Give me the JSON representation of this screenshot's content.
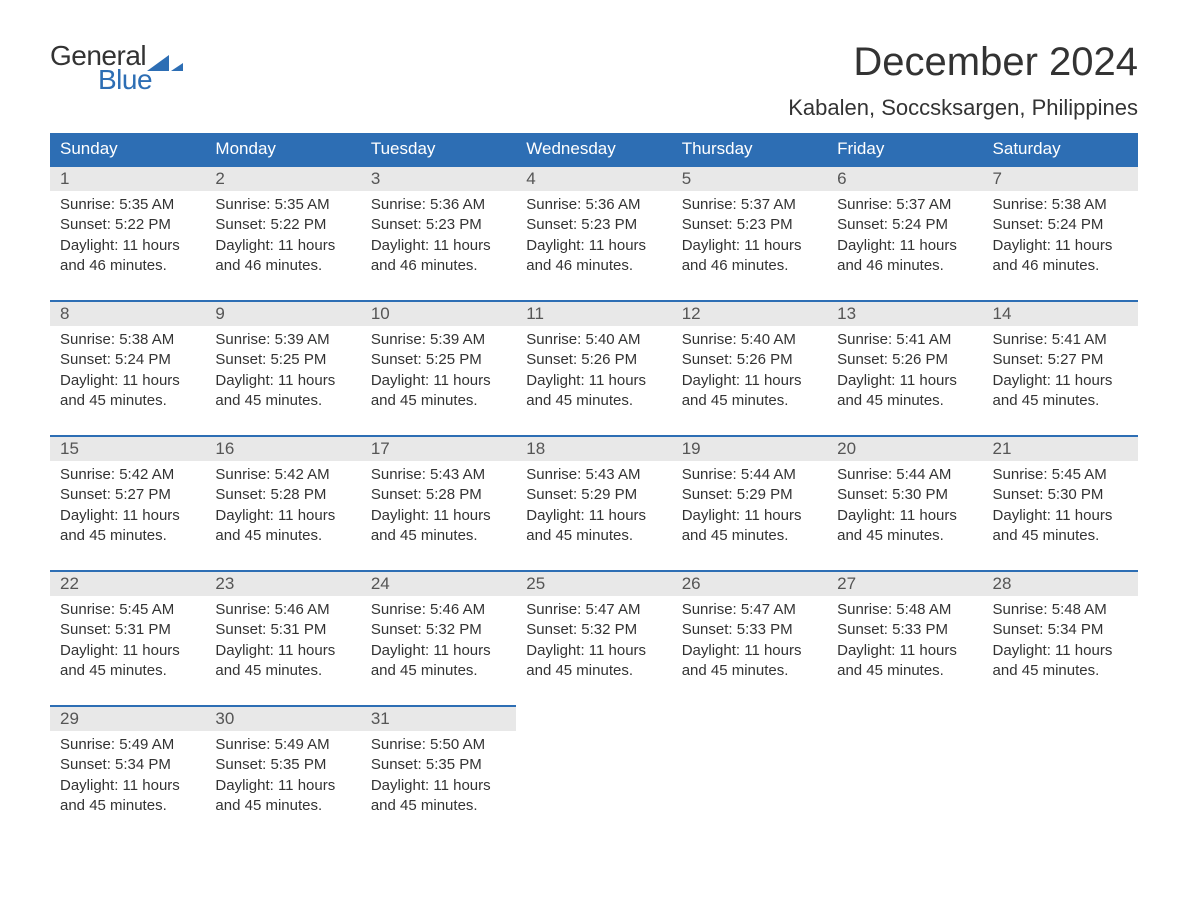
{
  "logo": {
    "text_general": "General",
    "text_blue": "Blue",
    "triangle_color": "#2d6eb4"
  },
  "title": "December 2024",
  "location": "Kabalen, Soccsksargen, Philippines",
  "colors": {
    "header_bg": "#2d6eb4",
    "header_text": "#ffffff",
    "day_number_bg": "#e8e8e8",
    "border_top": "#2d6eb4",
    "body_text": "#333333"
  },
  "weekdays": [
    "Sunday",
    "Monday",
    "Tuesday",
    "Wednesday",
    "Thursday",
    "Friday",
    "Saturday"
  ],
  "weeks": [
    [
      {
        "day": "1",
        "sunrise": "5:35 AM",
        "sunset": "5:22 PM",
        "daylight_line1": "Daylight: 11 hours",
        "daylight_line2": "and 46 minutes."
      },
      {
        "day": "2",
        "sunrise": "5:35 AM",
        "sunset": "5:22 PM",
        "daylight_line1": "Daylight: 11 hours",
        "daylight_line2": "and 46 minutes."
      },
      {
        "day": "3",
        "sunrise": "5:36 AM",
        "sunset": "5:23 PM",
        "daylight_line1": "Daylight: 11 hours",
        "daylight_line2": "and 46 minutes."
      },
      {
        "day": "4",
        "sunrise": "5:36 AM",
        "sunset": "5:23 PM",
        "daylight_line1": "Daylight: 11 hours",
        "daylight_line2": "and 46 minutes."
      },
      {
        "day": "5",
        "sunrise": "5:37 AM",
        "sunset": "5:23 PM",
        "daylight_line1": "Daylight: 11 hours",
        "daylight_line2": "and 46 minutes."
      },
      {
        "day": "6",
        "sunrise": "5:37 AM",
        "sunset": "5:24 PM",
        "daylight_line1": "Daylight: 11 hours",
        "daylight_line2": "and 46 minutes."
      },
      {
        "day": "7",
        "sunrise": "5:38 AM",
        "sunset": "5:24 PM",
        "daylight_line1": "Daylight: 11 hours",
        "daylight_line2": "and 46 minutes."
      }
    ],
    [
      {
        "day": "8",
        "sunrise": "5:38 AM",
        "sunset": "5:24 PM",
        "daylight_line1": "Daylight: 11 hours",
        "daylight_line2": "and 45 minutes."
      },
      {
        "day": "9",
        "sunrise": "5:39 AM",
        "sunset": "5:25 PM",
        "daylight_line1": "Daylight: 11 hours",
        "daylight_line2": "and 45 minutes."
      },
      {
        "day": "10",
        "sunrise": "5:39 AM",
        "sunset": "5:25 PM",
        "daylight_line1": "Daylight: 11 hours",
        "daylight_line2": "and 45 minutes."
      },
      {
        "day": "11",
        "sunrise": "5:40 AM",
        "sunset": "5:26 PM",
        "daylight_line1": "Daylight: 11 hours",
        "daylight_line2": "and 45 minutes."
      },
      {
        "day": "12",
        "sunrise": "5:40 AM",
        "sunset": "5:26 PM",
        "daylight_line1": "Daylight: 11 hours",
        "daylight_line2": "and 45 minutes."
      },
      {
        "day": "13",
        "sunrise": "5:41 AM",
        "sunset": "5:26 PM",
        "daylight_line1": "Daylight: 11 hours",
        "daylight_line2": "and 45 minutes."
      },
      {
        "day": "14",
        "sunrise": "5:41 AM",
        "sunset": "5:27 PM",
        "daylight_line1": "Daylight: 11 hours",
        "daylight_line2": "and 45 minutes."
      }
    ],
    [
      {
        "day": "15",
        "sunrise": "5:42 AM",
        "sunset": "5:27 PM",
        "daylight_line1": "Daylight: 11 hours",
        "daylight_line2": "and 45 minutes."
      },
      {
        "day": "16",
        "sunrise": "5:42 AM",
        "sunset": "5:28 PM",
        "daylight_line1": "Daylight: 11 hours",
        "daylight_line2": "and 45 minutes."
      },
      {
        "day": "17",
        "sunrise": "5:43 AM",
        "sunset": "5:28 PM",
        "daylight_line1": "Daylight: 11 hours",
        "daylight_line2": "and 45 minutes."
      },
      {
        "day": "18",
        "sunrise": "5:43 AM",
        "sunset": "5:29 PM",
        "daylight_line1": "Daylight: 11 hours",
        "daylight_line2": "and 45 minutes."
      },
      {
        "day": "19",
        "sunrise": "5:44 AM",
        "sunset": "5:29 PM",
        "daylight_line1": "Daylight: 11 hours",
        "daylight_line2": "and 45 minutes."
      },
      {
        "day": "20",
        "sunrise": "5:44 AM",
        "sunset": "5:30 PM",
        "daylight_line1": "Daylight: 11 hours",
        "daylight_line2": "and 45 minutes."
      },
      {
        "day": "21",
        "sunrise": "5:45 AM",
        "sunset": "5:30 PM",
        "daylight_line1": "Daylight: 11 hours",
        "daylight_line2": "and 45 minutes."
      }
    ],
    [
      {
        "day": "22",
        "sunrise": "5:45 AM",
        "sunset": "5:31 PM",
        "daylight_line1": "Daylight: 11 hours",
        "daylight_line2": "and 45 minutes."
      },
      {
        "day": "23",
        "sunrise": "5:46 AM",
        "sunset": "5:31 PM",
        "daylight_line1": "Daylight: 11 hours",
        "daylight_line2": "and 45 minutes."
      },
      {
        "day": "24",
        "sunrise": "5:46 AM",
        "sunset": "5:32 PM",
        "daylight_line1": "Daylight: 11 hours",
        "daylight_line2": "and 45 minutes."
      },
      {
        "day": "25",
        "sunrise": "5:47 AM",
        "sunset": "5:32 PM",
        "daylight_line1": "Daylight: 11 hours",
        "daylight_line2": "and 45 minutes."
      },
      {
        "day": "26",
        "sunrise": "5:47 AM",
        "sunset": "5:33 PM",
        "daylight_line1": "Daylight: 11 hours",
        "daylight_line2": "and 45 minutes."
      },
      {
        "day": "27",
        "sunrise": "5:48 AM",
        "sunset": "5:33 PM",
        "daylight_line1": "Daylight: 11 hours",
        "daylight_line2": "and 45 minutes."
      },
      {
        "day": "28",
        "sunrise": "5:48 AM",
        "sunset": "5:34 PM",
        "daylight_line1": "Daylight: 11 hours",
        "daylight_line2": "and 45 minutes."
      }
    ],
    [
      {
        "day": "29",
        "sunrise": "5:49 AM",
        "sunset": "5:34 PM",
        "daylight_line1": "Daylight: 11 hours",
        "daylight_line2": "and 45 minutes."
      },
      {
        "day": "30",
        "sunrise": "5:49 AM",
        "sunset": "5:35 PM",
        "daylight_line1": "Daylight: 11 hours",
        "daylight_line2": "and 45 minutes."
      },
      {
        "day": "31",
        "sunrise": "5:50 AM",
        "sunset": "5:35 PM",
        "daylight_line1": "Daylight: 11 hours",
        "daylight_line2": "and 45 minutes."
      },
      null,
      null,
      null,
      null
    ]
  ],
  "labels": {
    "sunrise_prefix": "Sunrise: ",
    "sunset_prefix": "Sunset: "
  }
}
